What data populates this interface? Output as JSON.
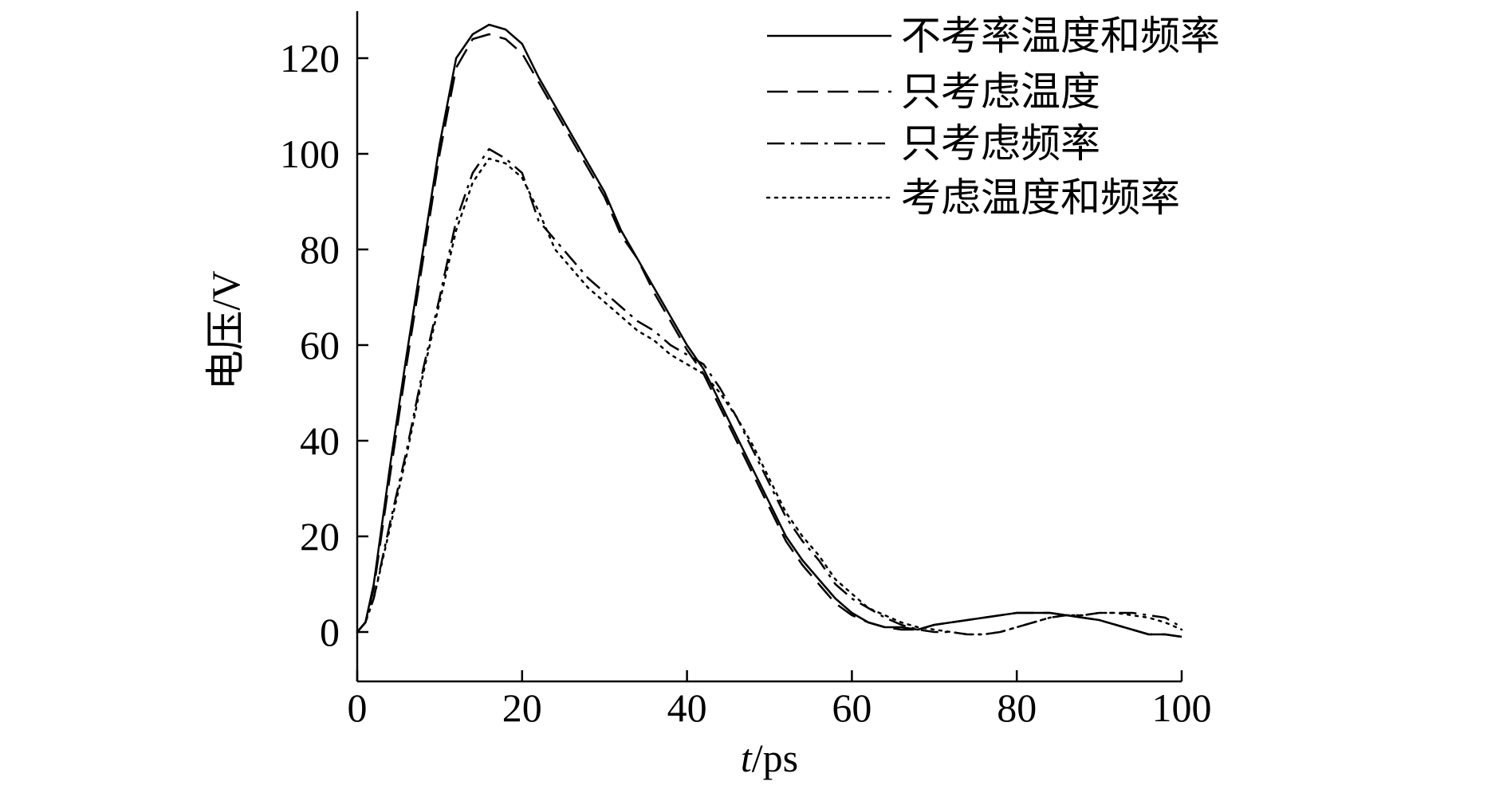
{
  "chart_data": {
    "type": "line",
    "xlabel": {
      "italic": "t",
      "rest": "/ps"
    },
    "ylabel": "电压/V",
    "xlim": [
      0,
      100
    ],
    "ylim": [
      -10,
      130
    ],
    "xticks": [
      "0",
      "20",
      "40",
      "60",
      "80",
      "100"
    ],
    "yticks": [
      "0",
      "20",
      "40",
      "60",
      "80",
      "100",
      "120"
    ],
    "legend_position": "top-right",
    "grid": false,
    "series": [
      {
        "name": "不考率温度和频率",
        "style": "solid",
        "x": [
          0,
          1,
          2,
          4,
          6,
          8,
          10,
          12,
          14,
          16,
          18,
          20,
          22,
          24,
          26,
          28,
          30,
          32,
          34,
          36,
          38,
          40,
          42,
          44,
          46,
          48,
          50,
          52,
          54,
          56,
          58,
          60,
          62,
          64,
          66,
          68,
          70,
          72,
          74,
          76,
          78,
          80,
          82,
          84,
          86,
          88,
          90,
          92,
          94,
          96,
          98,
          100
        ],
        "y": [
          0,
          2,
          10,
          35,
          58,
          80,
          102,
          120,
          125,
          127,
          126,
          123,
          116,
          110,
          104,
          98,
          92,
          84,
          78,
          72,
          66,
          60,
          55,
          48,
          41,
          34,
          27,
          20,
          15,
          11,
          7,
          4,
          2,
          1,
          1,
          0.5,
          1.5,
          2,
          2.5,
          3,
          3.5,
          4,
          4,
          4,
          3.5,
          3,
          2.5,
          1.5,
          0.5,
          -0.5,
          -0.5,
          -1
        ]
      },
      {
        "name": "只考虑温度",
        "style": "dashed",
        "x": [
          0,
          1,
          2,
          4,
          6,
          8,
          10,
          12,
          14,
          16,
          18,
          20,
          22,
          24,
          26,
          28,
          30,
          32,
          34,
          36,
          38,
          40,
          42,
          44,
          46,
          48,
          50,
          52,
          54,
          56,
          58,
          60,
          62,
          64,
          66,
          68,
          70,
          72,
          74,
          76,
          78,
          80,
          82,
          84,
          86,
          88,
          90,
          92,
          94,
          96,
          98,
          100
        ],
        "y": [
          0,
          2,
          9,
          33,
          56,
          78,
          100,
          118,
          124,
          125,
          124,
          121,
          115,
          109,
          103,
          97,
          91,
          83,
          78,
          71,
          65,
          59,
          54,
          47,
          40,
          33,
          26,
          19,
          14,
          10,
          6,
          3.5,
          2,
          1,
          0.5,
          0.5,
          1.5,
          2,
          2.5,
          3,
          3.5,
          4,
          4,
          4,
          3.5,
          3,
          2.5,
          1.5,
          0.5,
          -0.5,
          -0.5,
          -1
        ]
      },
      {
        "name": "只考虑频率",
        "style": "dashdot",
        "x": [
          0,
          1,
          2,
          4,
          6,
          8,
          10,
          12,
          14,
          16,
          18,
          20,
          22,
          24,
          26,
          28,
          30,
          32,
          34,
          36,
          38,
          40,
          42,
          44,
          46,
          48,
          50,
          52,
          54,
          56,
          58,
          60,
          62,
          64,
          66,
          68,
          70,
          72,
          74,
          76,
          78,
          80,
          82,
          84,
          86,
          88,
          90,
          92,
          94,
          96,
          98,
          100
        ],
        "y": [
          0,
          2,
          7,
          23,
          38,
          55,
          70,
          86,
          96,
          101,
          99,
          96,
          86,
          82,
          78,
          74,
          71,
          68,
          65,
          63,
          60,
          58,
          56,
          51,
          45,
          38,
          31,
          24,
          19,
          15,
          10,
          7,
          5,
          3,
          1.5,
          0.5,
          0,
          0,
          -0.5,
          -0.5,
          0,
          1,
          2,
          3,
          3.5,
          3.5,
          4,
          4,
          4,
          3.5,
          3,
          1
        ]
      },
      {
        "name": "考虑温度和频率",
        "style": "dotted",
        "x": [
          0,
          1,
          2,
          4,
          6,
          8,
          10,
          12,
          14,
          16,
          18,
          20,
          22,
          24,
          26,
          28,
          30,
          32,
          34,
          36,
          38,
          40,
          42,
          44,
          46,
          48,
          50,
          52,
          54,
          56,
          58,
          60,
          62,
          64,
          66,
          68,
          70,
          72,
          74,
          76,
          78,
          80,
          82,
          84,
          86,
          88,
          90,
          92,
          94,
          96,
          98,
          100
        ],
        "y": [
          0,
          2,
          7,
          22,
          37,
          54,
          69,
          84,
          94,
          99,
          98,
          95,
          88,
          80,
          76,
          72,
          69,
          66,
          63,
          61,
          58,
          56,
          54,
          50,
          45,
          39,
          32,
          25,
          20,
          16,
          11,
          8,
          5,
          3.5,
          2,
          1,
          0.5,
          0,
          -0.5,
          -0.5,
          0,
          1,
          2,
          3,
          3.5,
          3.5,
          4,
          4,
          3.5,
          3,
          2,
          0.5
        ]
      }
    ]
  }
}
